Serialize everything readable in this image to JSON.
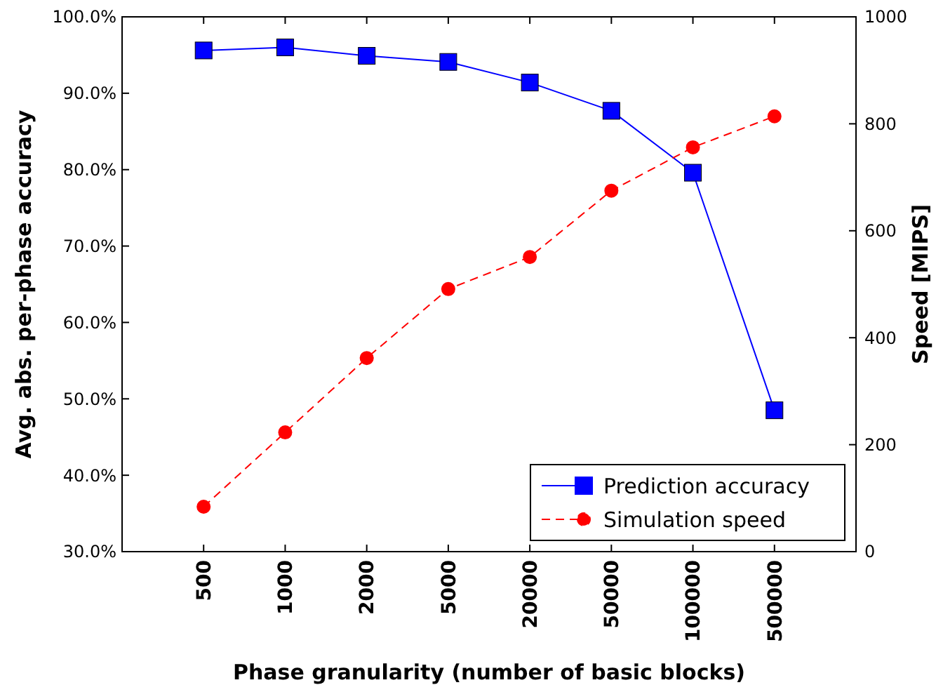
{
  "chart_data": {
    "type": "line",
    "xlabel": "Phase granularity (number of basic blocks)",
    "ylabel": "Avg. abs. per-phase accuracy",
    "y2label": "Speed [MIPS]",
    "categories": [
      "500",
      "1000",
      "2000",
      "5000",
      "20000",
      "50000",
      "100000",
      "500000"
    ],
    "series": [
      {
        "name": "Prediction accuracy",
        "color": "#0000ff",
        "marker": "square",
        "line_style": "solid",
        "values": [
          95.6,
          96.0,
          94.9,
          94.1,
          91.4,
          87.7,
          79.6,
          48.5
        ]
      },
      {
        "name": "Simulation speed",
        "color": "#ff0000",
        "marker": "circle",
        "line_style": "dashed",
        "axis": "y2",
        "values": [
          84,
          223,
          362,
          491,
          551,
          675,
          756,
          814
        ]
      }
    ],
    "ylim": [
      30,
      100
    ],
    "yticks": [
      {
        "value": 30,
        "label": "30.0%"
      },
      {
        "value": 40,
        "label": "40.0%"
      },
      {
        "value": 50,
        "label": "50.0%"
      },
      {
        "value": 60,
        "label": "60.0%"
      },
      {
        "value": 70,
        "label": "70.0%"
      },
      {
        "value": 80,
        "label": "80.0%"
      },
      {
        "value": 90,
        "label": "90.0%"
      },
      {
        "value": 100,
        "label": "100.0%"
      }
    ],
    "y2lim": [
      0,
      1000
    ],
    "y2ticks": [
      0,
      200,
      400,
      600,
      800,
      1000
    ],
    "legend": "bottom right",
    "grid": false
  }
}
